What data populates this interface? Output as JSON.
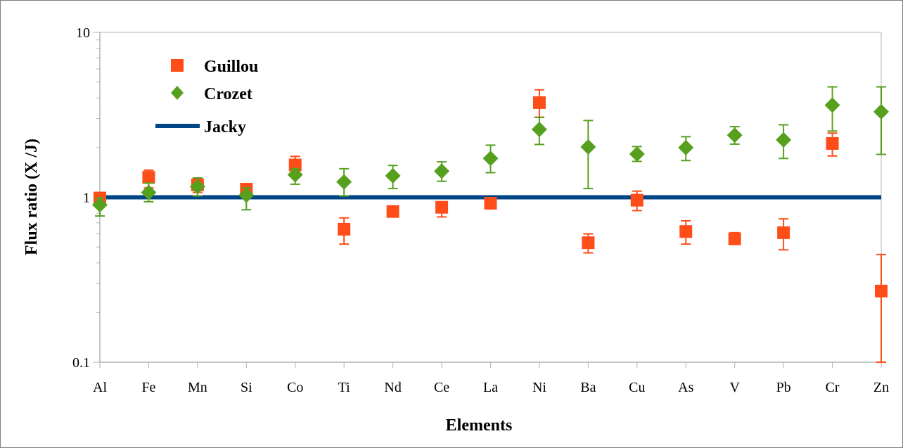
{
  "chart_data": {
    "type": "scatter",
    "title": "",
    "xlabel": "Elements",
    "ylabel": "Flux ratio (X /J)",
    "y_scale": "log",
    "ylim": [
      0.1,
      10
    ],
    "y_ticks": [
      "0.1",
      "1",
      "10"
    ],
    "grid": false,
    "legend_position": "top-left",
    "categories": [
      "Al",
      "Fe",
      "Mn",
      "Si",
      "Co",
      "Ti",
      "Nd",
      "Ce",
      "La",
      "Ni",
      "Ba",
      "Cu",
      "As",
      "V",
      "Pb",
      "Cr",
      "Zn"
    ],
    "series": [
      {
        "name": "Guillou",
        "marker": "square",
        "color": "#ff4d19",
        "values": [
          0.99,
          1.32,
          1.19,
          1.12,
          1.57,
          0.64,
          0.82,
          0.87,
          0.92,
          3.75,
          0.53,
          0.96,
          0.62,
          0.56,
          0.61,
          2.12,
          0.27
        ],
        "err_low": [
          0.94,
          1.14,
          1.07,
          1.05,
          1.4,
          0.52,
          0.77,
          0.76,
          0.86,
          3.06,
          0.46,
          0.83,
          0.52,
          0.52,
          0.48,
          1.78,
          0.1
        ],
        "err_high": [
          1.05,
          1.46,
          1.25,
          1.17,
          1.77,
          0.75,
          0.87,
          0.93,
          0.97,
          4.48,
          0.6,
          1.09,
          0.72,
          0.61,
          0.74,
          2.45,
          0.45
        ]
      },
      {
        "name": "Crozet",
        "marker": "diamond",
        "color": "#56a01e",
        "values": [
          0.9,
          1.07,
          1.16,
          1.03,
          1.37,
          1.24,
          1.35,
          1.44,
          1.72,
          2.58,
          2.02,
          1.83,
          2.0,
          2.38,
          2.23,
          3.62,
          3.3
        ],
        "err_low": [
          0.77,
          0.94,
          1.02,
          0.84,
          1.2,
          1.02,
          1.13,
          1.25,
          1.41,
          2.09,
          1.13,
          1.65,
          1.67,
          2.1,
          1.72,
          2.52,
          1.82
        ],
        "err_high": [
          0.99,
          1.22,
          1.31,
          1.14,
          1.49,
          1.49,
          1.56,
          1.64,
          2.07,
          3.05,
          2.92,
          2.03,
          2.33,
          2.68,
          2.75,
          4.67,
          4.67
        ]
      },
      {
        "name": "Jacky",
        "marker": "line",
        "color": "#004586",
        "values": [
          1,
          1,
          1,
          1,
          1,
          1,
          1,
          1,
          1,
          1,
          1,
          1,
          1,
          1,
          1,
          1,
          1
        ]
      }
    ]
  }
}
